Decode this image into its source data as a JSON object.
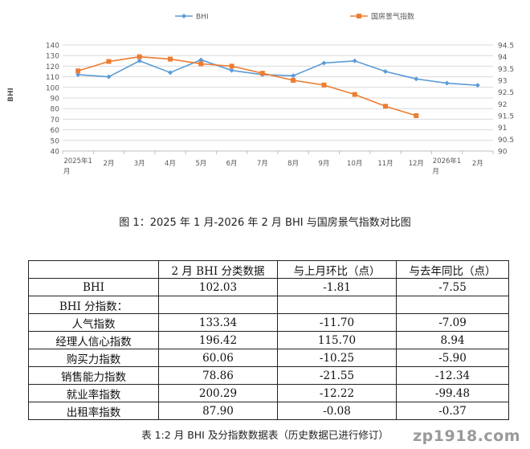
{
  "chart_data": {
    "type": "line",
    "categories": [
      "2025年1月",
      "2月",
      "3月",
      "4月",
      "5月",
      "6月",
      "7月",
      "8月",
      "9月",
      "10月",
      "11月",
      "12月",
      "2026年1月",
      "2月"
    ],
    "series": [
      {
        "name": "BHI",
        "color": "#5b9bd5",
        "marker": "diamond",
        "axis": "left",
        "values": [
          112,
          110,
          125,
          114,
          126,
          116,
          112,
          111,
          123,
          125,
          115,
          108,
          104,
          102
        ]
      },
      {
        "name": "国房景气指数",
        "color": "#ed7d31",
        "marker": "square",
        "axis": "right",
        "values": [
          93.4,
          93.8,
          94.0,
          93.9,
          93.7,
          93.6,
          93.3,
          93.0,
          92.8,
          92.4,
          91.9,
          91.5,
          null,
          null
        ]
      }
    ],
    "ylabel": "BHI",
    "ylim": [
      40,
      140
    ],
    "yticks": [
      40,
      50,
      60,
      70,
      80,
      90,
      100,
      110,
      120,
      130,
      140
    ],
    "y2lim": [
      90,
      94.5
    ],
    "y2ticks": [
      "90",
      "90.5",
      "91",
      "91.5",
      "92",
      "92.5",
      "93",
      "93.5",
      "94",
      "94.5"
    ],
    "grid": true,
    "legend": "top-center"
  },
  "figure_caption": "图 1：2025 年 1 月-2026 年 2 月 BHI 与国房景气指数对比图",
  "table": {
    "headers": [
      "",
      "2 月 BHI 分类数据",
      "与上月环比（点）",
      "与去年同比（点）"
    ],
    "rows": [
      {
        "name": "BHI",
        "values": [
          "102.03",
          "-1.81",
          "-7.55"
        ],
        "type": "main"
      },
      {
        "name": "BHI 分指数：",
        "values": [
          "",
          "",
          ""
        ],
        "type": "section"
      },
      {
        "name": "人气指数",
        "values": [
          "133.34",
          "-11.70",
          "-7.09"
        ],
        "type": "sub"
      },
      {
        "name": "经理人信心指数",
        "values": [
          "196.42",
          "115.70",
          "8.94"
        ],
        "type": "sub"
      },
      {
        "name": "购买力指数",
        "values": [
          "60.06",
          "-10.25",
          "-5.90"
        ],
        "type": "sub"
      },
      {
        "name": "销售能力指数",
        "values": [
          "78.86",
          "-21.55",
          "-12.34"
        ],
        "type": "sub"
      },
      {
        "name": "就业率指数",
        "values": [
          "200.29",
          "-12.22",
          "-99.48"
        ],
        "type": "sub"
      },
      {
        "name": "出租率指数",
        "values": [
          "87.90",
          "-0.08",
          "-0.37"
        ],
        "type": "sub"
      }
    ]
  },
  "table_caption": "表 1:2 月 BHI 及分指数数据表（历史数据已进行修订）",
  "watermark": "zp1918.com"
}
